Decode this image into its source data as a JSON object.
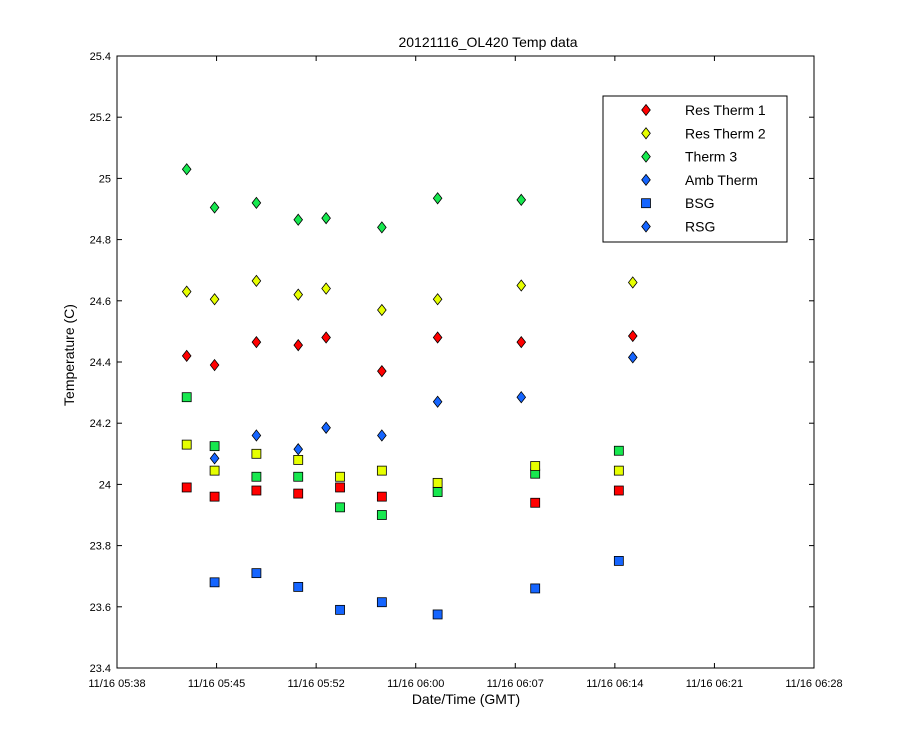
{
  "chart_data": {
    "type": "scatter",
    "title": "20121116_OL420 Temp data",
    "xlabel": "Date/Time (GMT)",
    "ylabel": "Temperature (C)",
    "x_tick_labels": [
      "11/16 05:38",
      "11/16 05:45",
      "11/16 05:52",
      "11/16 06:00",
      "11/16 06:07",
      "11/16 06:14",
      "11/16 06:21",
      "11/16 06:28"
    ],
    "y_tick_labels": [
      "23.4",
      "23.6",
      "23.8",
      "24",
      "24.2",
      "24.4",
      "24.6",
      "24.8",
      "25",
      "25.2",
      "25.4"
    ],
    "ylim": [
      23.4,
      25.4
    ],
    "xlim": [
      "11/16 05:38",
      "11/16 06:28"
    ],
    "grid": false,
    "legend_position": "top-right",
    "series": [
      {
        "name": "Res Therm 1",
        "marker": "diamond",
        "color": "#ff0000",
        "x": [
          "11/16 05:43",
          "11/16 05:45",
          "11/16 05:48",
          "11/16 05:51",
          "11/16 05:53",
          "11/16 05:57",
          "11/16 06:01",
          "11/16 06:07",
          "11/16 06:15"
        ],
        "y": [
          24.42,
          24.39,
          24.465,
          24.455,
          24.48,
          24.37,
          24.48,
          24.465,
          24.485
        ]
      },
      {
        "name": "Res Therm 2",
        "marker": "diamond",
        "color": "#e6ff00",
        "x": [
          "11/16 05:43",
          "11/16 05:45",
          "11/16 05:48",
          "11/16 05:51",
          "11/16 05:53",
          "11/16 05:57",
          "11/16 06:01",
          "11/16 06:07",
          "11/16 06:15"
        ],
        "y": [
          24.63,
          24.605,
          24.665,
          24.62,
          24.64,
          24.57,
          24.605,
          24.65,
          24.66
        ]
      },
      {
        "name": "Therm 3",
        "marker": "diamond",
        "color": "#17e84f",
        "x": [
          "11/16 05:43",
          "11/16 05:45",
          "11/16 05:48",
          "11/16 05:51",
          "11/16 05:53",
          "11/16 05:57",
          "11/16 06:01",
          "11/16 06:07"
        ],
        "y": [
          25.03,
          24.905,
          24.92,
          24.865,
          24.87,
          24.84,
          24.935,
          24.93
        ]
      },
      {
        "name": "Amb Therm",
        "marker": "diamond",
        "color": "#1565ff",
        "x": [
          "11/16 05:45",
          "11/16 05:48",
          "11/16 05:51",
          "11/16 05:53",
          "11/16 05:57",
          "11/16 06:01",
          "11/16 06:07",
          "11/16 06:15"
        ],
        "y": [
          24.085,
          24.16,
          24.115,
          24.185,
          24.16,
          24.27,
          24.285,
          24.415
        ]
      },
      {
        "name": "BSG",
        "marker": "square",
        "color": "#1565ff",
        "x": [
          "11/16 05:45",
          "11/16 05:48",
          "11/16 05:51",
          "11/16 05:54",
          "11/16 05:57",
          "11/16 06:01",
          "11/16 06:08",
          "11/16 06:14"
        ],
        "y": [
          23.68,
          23.71,
          23.665,
          23.59,
          23.615,
          23.575,
          23.66,
          23.75
        ]
      },
      {
        "name": "RSG",
        "marker": "diamond",
        "color": "#1565ff",
        "x": [],
        "y": []
      }
    ],
    "unlabeled_series": [
      {
        "marker": "square",
        "color": "#17e84f",
        "x": [
          "11/16 05:43",
          "11/16 05:45",
          "11/16 05:48",
          "11/16 05:51",
          "11/16 05:54",
          "11/16 05:57",
          "11/16 06:01",
          "11/16 06:08",
          "11/16 06:14"
        ],
        "y": [
          24.285,
          24.125,
          24.025,
          24.025,
          23.925,
          23.9,
          23.975,
          24.035,
          24.11
        ]
      },
      {
        "marker": "square",
        "color": "#e6ff00",
        "x": [
          "11/16 05:43",
          "11/16 05:45",
          "11/16 05:48",
          "11/16 05:51",
          "11/16 05:54",
          "11/16 05:57",
          "11/16 06:01",
          "11/16 06:08",
          "11/16 06:14"
        ],
        "y": [
          24.13,
          24.045,
          24.1,
          24.08,
          24.025,
          24.045,
          24.005,
          24.06,
          24.045
        ]
      },
      {
        "marker": "square",
        "color": "#ff0000",
        "x": [
          "11/16 05:43",
          "11/16 05:45",
          "11/16 05:48",
          "11/16 05:51",
          "11/16 05:54",
          "11/16 05:57",
          "11/16 06:01",
          "11/16 06:08",
          "11/16 06:14"
        ],
        "y": [
          23.99,
          23.96,
          23.98,
          23.97,
          23.99,
          23.96,
          null,
          23.94,
          23.98
        ]
      }
    ]
  }
}
